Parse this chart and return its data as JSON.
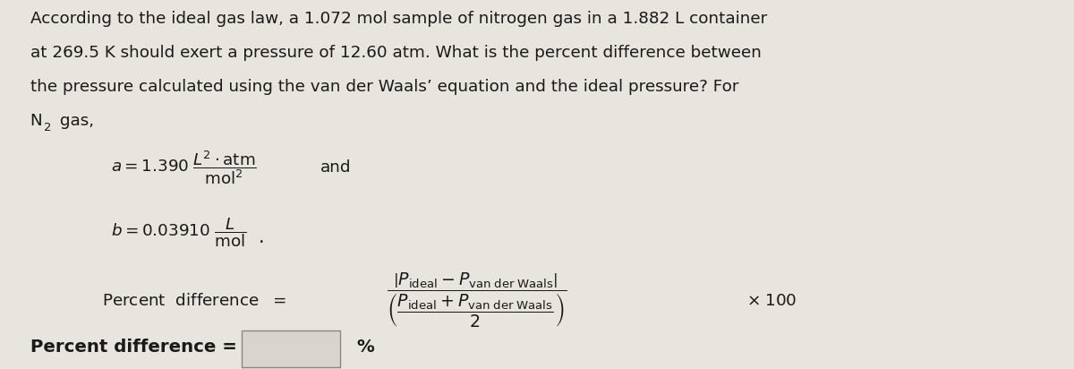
{
  "bg_color": "#e8e4de",
  "text_color": "#1a1a1a",
  "font_size": 13.2,
  "line1": "According to the ideal gas law, a 1.072 mol sample of nitrogen gas in a 1.882 L container",
  "line2": "at 269.5 K should exert a pressure of 12.60 atm. What is the percent difference between",
  "line3": "the pressure calculated using the van der Waals’ equation and the ideal pressure? For",
  "line4_part1": "N",
  "line4_part2": "2",
  "line4_part3": " gas,",
  "a_expr": "$a = 1.390\\;\\dfrac{L^2 \\cdot \\mathrm{atm}}{\\mathrm{mol}^2}$",
  "and_text": "and",
  "b_expr": "$b = 0.03910\\;\\dfrac{L}{\\mathrm{mol}}$",
  "period": ".",
  "percent_diff_label": "Percent  difference  =",
  "formula": "$\\dfrac{\\left|P_{\\mathrm{ideal}} - P_{\\mathrm{van\\;der\\;Waals}}\\right|}{\\left(\\dfrac{P_{\\mathrm{ideal}}+P_{\\mathrm{van\\;der\\;Waals}}}{2}\\right)}$",
  "times100": "$\\times 100$",
  "answer_label": "Percent difference =",
  "percent_sign": "%",
  "box_facecolor": "#d8d4ce",
  "box_edgecolor": "#888880",
  "dot_color": "#888888"
}
